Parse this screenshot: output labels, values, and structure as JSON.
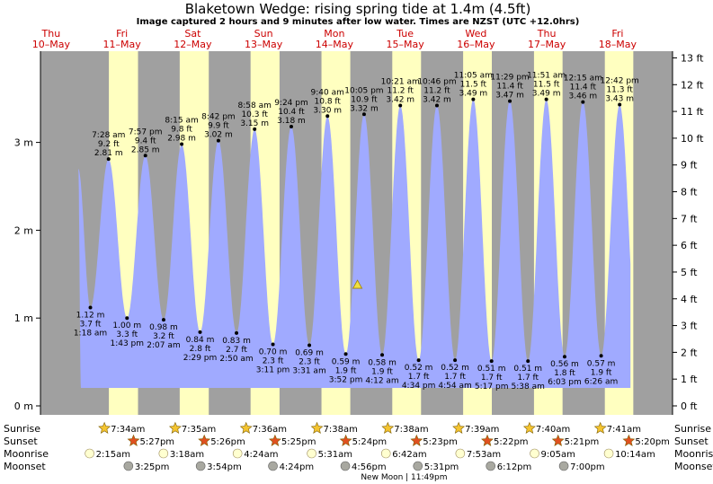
{
  "chart_data": {
    "type": "area",
    "title": "Blaketown Wedge: rising  spring tide at 1.4m (4.5ft)",
    "subtitle": "Image captured 2 hours and 9 minutes after low water. Times are NZST (UTC +12.0hrs)",
    "days": [
      {
        "weekday": "Thu",
        "date": "10–May"
      },
      {
        "weekday": "Fri",
        "date": "11–May"
      },
      {
        "weekday": "Sat",
        "date": "12–May"
      },
      {
        "weekday": "Sun",
        "date": "13–May"
      },
      {
        "weekday": "Mon",
        "date": "14–May"
      },
      {
        "weekday": "Tue",
        "date": "15–May"
      },
      {
        "weekday": "Wed",
        "date": "16–May"
      },
      {
        "weekday": "Thu",
        "date": "17–May"
      },
      {
        "weekday": "Fri",
        "date": "18–May"
      }
    ],
    "left_axis": {
      "unit": "m",
      "ticks": [
        "0 m",
        "1 m",
        "2 m",
        "3 m"
      ],
      "values": [
        0,
        1,
        2,
        3
      ],
      "ylim": [
        0,
        4.2
      ]
    },
    "right_axis": {
      "unit": "ft",
      "ticks": [
        "0 ft",
        "1 ft",
        "2 ft",
        "3 ft",
        "4 ft",
        "5 ft",
        "6 ft",
        "7 ft",
        "8 ft",
        "9 ft",
        "10 ft",
        "11 ft",
        "12 ft",
        "13 ft"
      ],
      "values": [
        0,
        1,
        2,
        3,
        4,
        5,
        6,
        7,
        8,
        9,
        10,
        11,
        12,
        13
      ]
    },
    "tides": [
      {
        "type": "high",
        "time": "",
        "m": 2.7,
        "m_label": "",
        "ft_label": "",
        "day": 0,
        "hour": 21.2
      },
      {
        "type": "low",
        "time": "1:18 am",
        "m": 1.12,
        "m_label": "1.12 m",
        "ft_label": "3.7 ft",
        "day": 1,
        "hour": 1.3
      },
      {
        "type": "high",
        "time": "7:28 am",
        "m": 2.81,
        "m_label": "2.81 m",
        "ft_label": "9.2 ft",
        "day": 1,
        "hour": 7.47
      },
      {
        "type": "low",
        "time": "1:43 pm",
        "m": 1.0,
        "m_label": "1.00 m",
        "ft_label": "3.3 ft",
        "day": 1,
        "hour": 13.72
      },
      {
        "type": "high",
        "time": "7:57 pm",
        "m": 2.85,
        "m_label": "2.85 m",
        "ft_label": "9.4 ft",
        "day": 1,
        "hour": 19.95
      },
      {
        "type": "low",
        "time": "2:07 am",
        "m": 0.98,
        "m_label": "0.98 m",
        "ft_label": "3.2 ft",
        "day": 2,
        "hour": 2.12
      },
      {
        "type": "high",
        "time": "8:15 am",
        "m": 2.98,
        "m_label": "2.98 m",
        "ft_label": "9.8 ft",
        "day": 2,
        "hour": 8.25
      },
      {
        "type": "low",
        "time": "2:29 pm",
        "m": 0.84,
        "m_label": "0.84 m",
        "ft_label": "2.8 ft",
        "day": 2,
        "hour": 14.48
      },
      {
        "type": "high",
        "time": "8:42 pm",
        "m": 3.02,
        "m_label": "3.02 m",
        "ft_label": "9.9 ft",
        "day": 2,
        "hour": 20.7
      },
      {
        "type": "low",
        "time": "2:50 am",
        "m": 0.83,
        "m_label": "0.83 m",
        "ft_label": "2.7 ft",
        "day": 3,
        "hour": 2.83
      },
      {
        "type": "high",
        "time": "8:58 am",
        "m": 3.15,
        "m_label": "3.15 m",
        "ft_label": "10.3 ft",
        "day": 3,
        "hour": 8.97
      },
      {
        "type": "low",
        "time": "3:11 pm",
        "m": 0.7,
        "m_label": "0.70 m",
        "ft_label": "2.3 ft",
        "day": 3,
        "hour": 15.18
      },
      {
        "type": "high",
        "time": "9:24 pm",
        "m": 3.18,
        "m_label": "3.18 m",
        "ft_label": "10.4 ft",
        "day": 3,
        "hour": 21.4
      },
      {
        "type": "low",
        "time": "3:31 am",
        "m": 0.69,
        "m_label": "0.69 m",
        "ft_label": "2.3 ft",
        "day": 4,
        "hour": 3.52
      },
      {
        "type": "high",
        "time": "9:40 am",
        "m": 3.3,
        "m_label": "3.30 m",
        "ft_label": "10.8 ft",
        "day": 4,
        "hour": 9.67
      },
      {
        "type": "low",
        "time": "3:52 pm",
        "m": 0.59,
        "m_label": "0.59 m",
        "ft_label": "1.9 ft",
        "day": 4,
        "hour": 15.87
      },
      {
        "type": "high",
        "time": "10:05 pm",
        "m": 3.32,
        "m_label": "3.32 m",
        "ft_label": "10.9 ft",
        "day": 4,
        "hour": 22.08
      },
      {
        "type": "low",
        "time": "4:12 am",
        "m": 0.58,
        "m_label": "0.58 m",
        "ft_label": "1.9 ft",
        "day": 5,
        "hour": 4.2
      },
      {
        "type": "high",
        "time": "10:21 am",
        "m": 3.42,
        "m_label": "3.42 m",
        "ft_label": "11.2 ft",
        "day": 5,
        "hour": 10.35
      },
      {
        "type": "low",
        "time": "4:34 pm",
        "m": 0.52,
        "m_label": "0.52 m",
        "ft_label": "1.7 ft",
        "day": 5,
        "hour": 16.57
      },
      {
        "type": "high",
        "time": "10:46 pm",
        "m": 3.42,
        "m_label": "3.42 m",
        "ft_label": "11.2 ft",
        "day": 5,
        "hour": 22.77
      },
      {
        "type": "low",
        "time": "4:54 am",
        "m": 0.52,
        "m_label": "0.52 m",
        "ft_label": "1.7 ft",
        "day": 6,
        "hour": 4.9
      },
      {
        "type": "high",
        "time": "11:05 am",
        "m": 3.49,
        "m_label": "3.49 m",
        "ft_label": "11.5 ft",
        "day": 6,
        "hour": 11.08
      },
      {
        "type": "low",
        "time": "5:17 pm",
        "m": 0.51,
        "m_label": "0.51 m",
        "ft_label": "1.7 ft",
        "day": 6,
        "hour": 17.28
      },
      {
        "type": "high",
        "time": "11:29 pm",
        "m": 3.47,
        "m_label": "3.47 m",
        "ft_label": "11.4 ft",
        "day": 6,
        "hour": 23.48
      },
      {
        "type": "low",
        "time": "5:38 am",
        "m": 0.51,
        "m_label": "0.51 m",
        "ft_label": "1.7 ft",
        "day": 7,
        "hour": 5.63
      },
      {
        "type": "high",
        "time": "11:51 am",
        "m": 3.49,
        "m_label": "3.49 m",
        "ft_label": "11.5 ft",
        "day": 7,
        "hour": 11.85
      },
      {
        "type": "low",
        "time": "6:03 pm",
        "m": 0.56,
        "m_label": "0.56 m",
        "ft_label": "1.8 ft",
        "day": 7,
        "hour": 18.05
      },
      {
        "type": "high",
        "time": "12:15 am",
        "m": 3.46,
        "m_label": "3.46 m",
        "ft_label": "11.4 ft",
        "day": 8,
        "hour": 0.25
      },
      {
        "type": "low",
        "time": "6:26 am",
        "m": 0.57,
        "m_label": "0.57 m",
        "ft_label": "1.9 ft",
        "day": 8,
        "hour": 6.43
      },
      {
        "type": "high",
        "time": "12:42 pm",
        "m": 3.43,
        "m_label": "3.43 m",
        "ft_label": "11.3 ft",
        "day": 8,
        "hour": 12.7
      }
    ],
    "current": {
      "m": 1.4,
      "day": 4,
      "hour": 18.0
    },
    "footer_labels": {
      "sunrise": "Sunrise",
      "sunset": "Sunset",
      "moonrise": "Moonrise",
      "moonset": "Moonset"
    },
    "sunrise": [
      {
        "day": 1,
        "hour": 7.57,
        "time": "7:34am"
      },
      {
        "day": 2,
        "hour": 7.58,
        "time": "7:35am"
      },
      {
        "day": 3,
        "hour": 7.6,
        "time": "7:36am"
      },
      {
        "day": 4,
        "hour": 7.63,
        "time": "7:38am"
      },
      {
        "day": 5,
        "hour": 7.63,
        "time": "7:38am"
      },
      {
        "day": 6,
        "hour": 7.65,
        "time": "7:39am"
      },
      {
        "day": 7,
        "hour": 7.67,
        "time": "7:40am"
      },
      {
        "day": 8,
        "hour": 7.68,
        "time": "7:41am"
      }
    ],
    "sunset": [
      {
        "day": 1,
        "hour": 17.45,
        "time": "5:27pm"
      },
      {
        "day": 2,
        "hour": 17.43,
        "time": "5:26pm"
      },
      {
        "day": 3,
        "hour": 17.42,
        "time": "5:25pm"
      },
      {
        "day": 4,
        "hour": 17.4,
        "time": "5:24pm"
      },
      {
        "day": 5,
        "hour": 17.38,
        "time": "5:23pm"
      },
      {
        "day": 6,
        "hour": 17.37,
        "time": "5:22pm"
      },
      {
        "day": 7,
        "hour": 17.35,
        "time": "5:21pm"
      },
      {
        "day": 8,
        "hour": 17.33,
        "time": "5:20pm"
      }
    ],
    "moonrise": [
      {
        "day": 1,
        "hour": 2.25,
        "time": "2:15am"
      },
      {
        "day": 2,
        "hour": 3.3,
        "time": "3:18am"
      },
      {
        "day": 3,
        "hour": 4.4,
        "time": "4:24am"
      },
      {
        "day": 4,
        "hour": 5.52,
        "time": "5:31am"
      },
      {
        "day": 5,
        "hour": 6.7,
        "time": "6:42am"
      },
      {
        "day": 6,
        "hour": 7.88,
        "time": "7:53am"
      },
      {
        "day": 7,
        "hour": 9.08,
        "time": "9:05am"
      },
      {
        "day": 8,
        "hour": 10.23,
        "time": "10:14am"
      }
    ],
    "moonset": [
      {
        "day": 1,
        "hour": 15.42,
        "time": "3:25pm"
      },
      {
        "day": 2,
        "hour": 15.9,
        "time": "3:54pm"
      },
      {
        "day": 3,
        "hour": 16.4,
        "time": "4:24pm"
      },
      {
        "day": 4,
        "hour": 16.93,
        "time": "4:56pm"
      },
      {
        "day": 5,
        "hour": 17.52,
        "time": "5:31pm"
      },
      {
        "day": 6,
        "hour": 18.2,
        "time": "6:12pm"
      },
      {
        "day": 7,
        "hour": 19.0,
        "time": "7:00pm"
      }
    ],
    "new_moon": {
      "day": 5,
      "hour": 23.82,
      "label": "New Moon | 11:49pm"
    },
    "colors": {
      "night": "#a0a0a0",
      "day": "#ffffc0",
      "water": "#a0aaff",
      "day_label": "#cc0000",
      "sun": "#f4c430",
      "sunset": "#e05020",
      "moonrise": "#ffffd0",
      "moonset": "#a8a8a0",
      "marker": "#f0e040"
    }
  }
}
